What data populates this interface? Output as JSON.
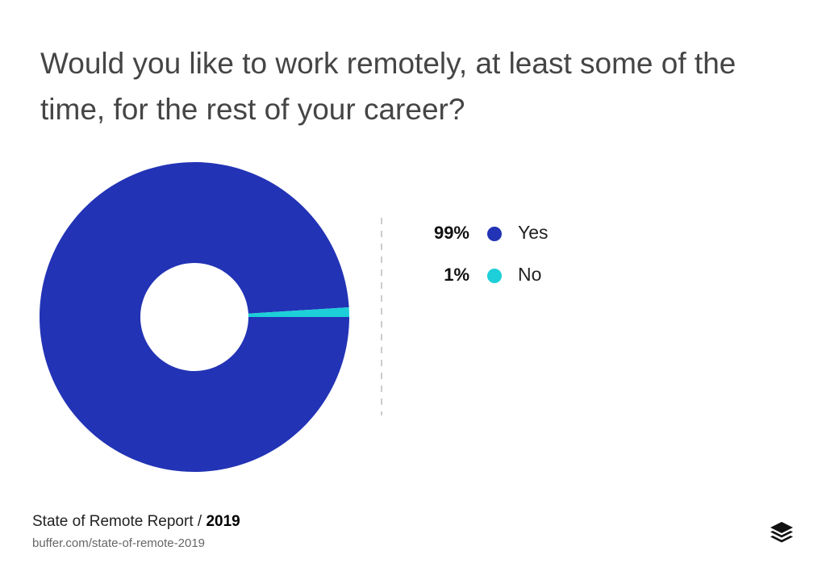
{
  "chart_data": {
    "type": "donut",
    "title": "Would you like to work remotely, at least some of the time, for the rest of your career?",
    "categories": [
      "Yes",
      "No"
    ],
    "values": [
      99,
      1
    ],
    "value_labels": [
      "99%",
      "1%"
    ],
    "colors": [
      "#2233b5",
      "#1dcfd8"
    ],
    "footer": {
      "report": "State of Remote Report /",
      "year": "2019",
      "url": "buffer.com/state-of-remote-2019"
    }
  }
}
